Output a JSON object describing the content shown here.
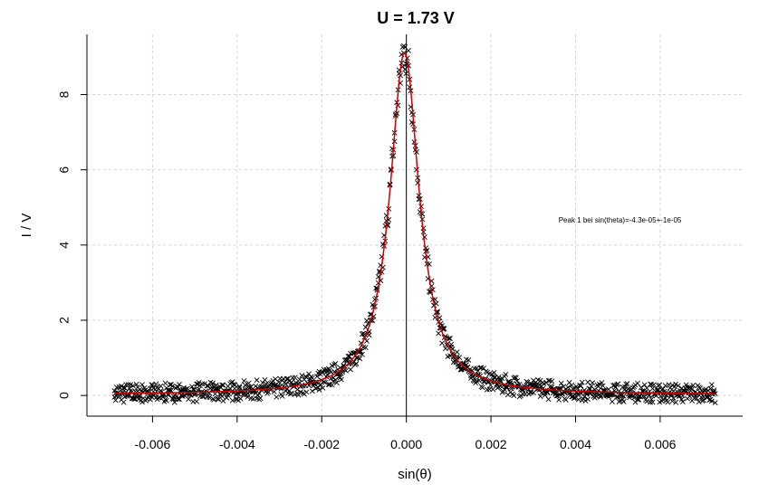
{
  "chart_data": {
    "type": "scatter",
    "title": "U = 1.73 V",
    "xlabel": "sin(θ)",
    "ylabel": "I / V",
    "xlim": [
      -0.00755,
      0.00795
    ],
    "ylim": [
      -0.55,
      9.6
    ],
    "grid": true,
    "x_ticks": [
      -0.006,
      -0.004,
      -0.002,
      0.0,
      0.002,
      0.004,
      0.006
    ],
    "x_tick_labels": [
      "-0.006",
      "-0.004",
      "-0.002",
      "0.000",
      "0.002",
      "0.004",
      "0.006"
    ],
    "y_ticks": [
      0,
      2,
      4,
      6,
      8
    ],
    "y_tick_labels": [
      "0",
      "2",
      "4",
      "6",
      "8"
    ],
    "vertical_line_x": 0.0,
    "annotation": {
      "text": "Peak 1 bei sin(theta)=-4.3e-05+-1e-05",
      "x": 0.00505,
      "y": 4.6
    },
    "series": [
      {
        "kind": "points",
        "marker": "x",
        "color": "#000000",
        "description_points": [
          [
            -0.0069,
            0.05
          ],
          [
            -0.006,
            0.05
          ],
          [
            -0.005,
            0.05
          ],
          [
            -0.004,
            0.06
          ],
          [
            -0.003,
            0.1
          ],
          [
            -0.0025,
            0.2
          ],
          [
            -0.002,
            0.45
          ],
          [
            -0.0018,
            0.7
          ],
          [
            -0.0015,
            1.0
          ],
          [
            -0.0012,
            1.6
          ],
          [
            -0.001,
            2.2
          ],
          [
            -0.0008,
            3.3
          ],
          [
            -0.0006,
            4.8
          ],
          [
            -0.0004,
            6.5
          ],
          [
            -0.0002,
            8.2
          ],
          [
            -0.0001,
            9.0
          ],
          [
            0.0,
            9.2
          ],
          [
            0.0001,
            9.0
          ],
          [
            0.0002,
            8.2
          ],
          [
            0.0004,
            6.6
          ],
          [
            0.0006,
            4.5
          ],
          [
            0.0008,
            3.0
          ],
          [
            0.001,
            2.0
          ],
          [
            0.0012,
            1.3
          ],
          [
            0.0015,
            0.8
          ],
          [
            0.002,
            0.35
          ],
          [
            0.0025,
            0.18
          ],
          [
            0.003,
            0.1
          ],
          [
            0.004,
            0.06
          ],
          [
            0.005,
            0.05
          ],
          [
            0.006,
            0.05
          ],
          [
            0.0073,
            0.05
          ]
        ]
      },
      {
        "kind": "fit-line",
        "color": "#cc0000",
        "peak_center": -4.3e-05,
        "peak_height": 9.1,
        "half_width": 0.00042,
        "baseline": 0.02
      }
    ]
  }
}
